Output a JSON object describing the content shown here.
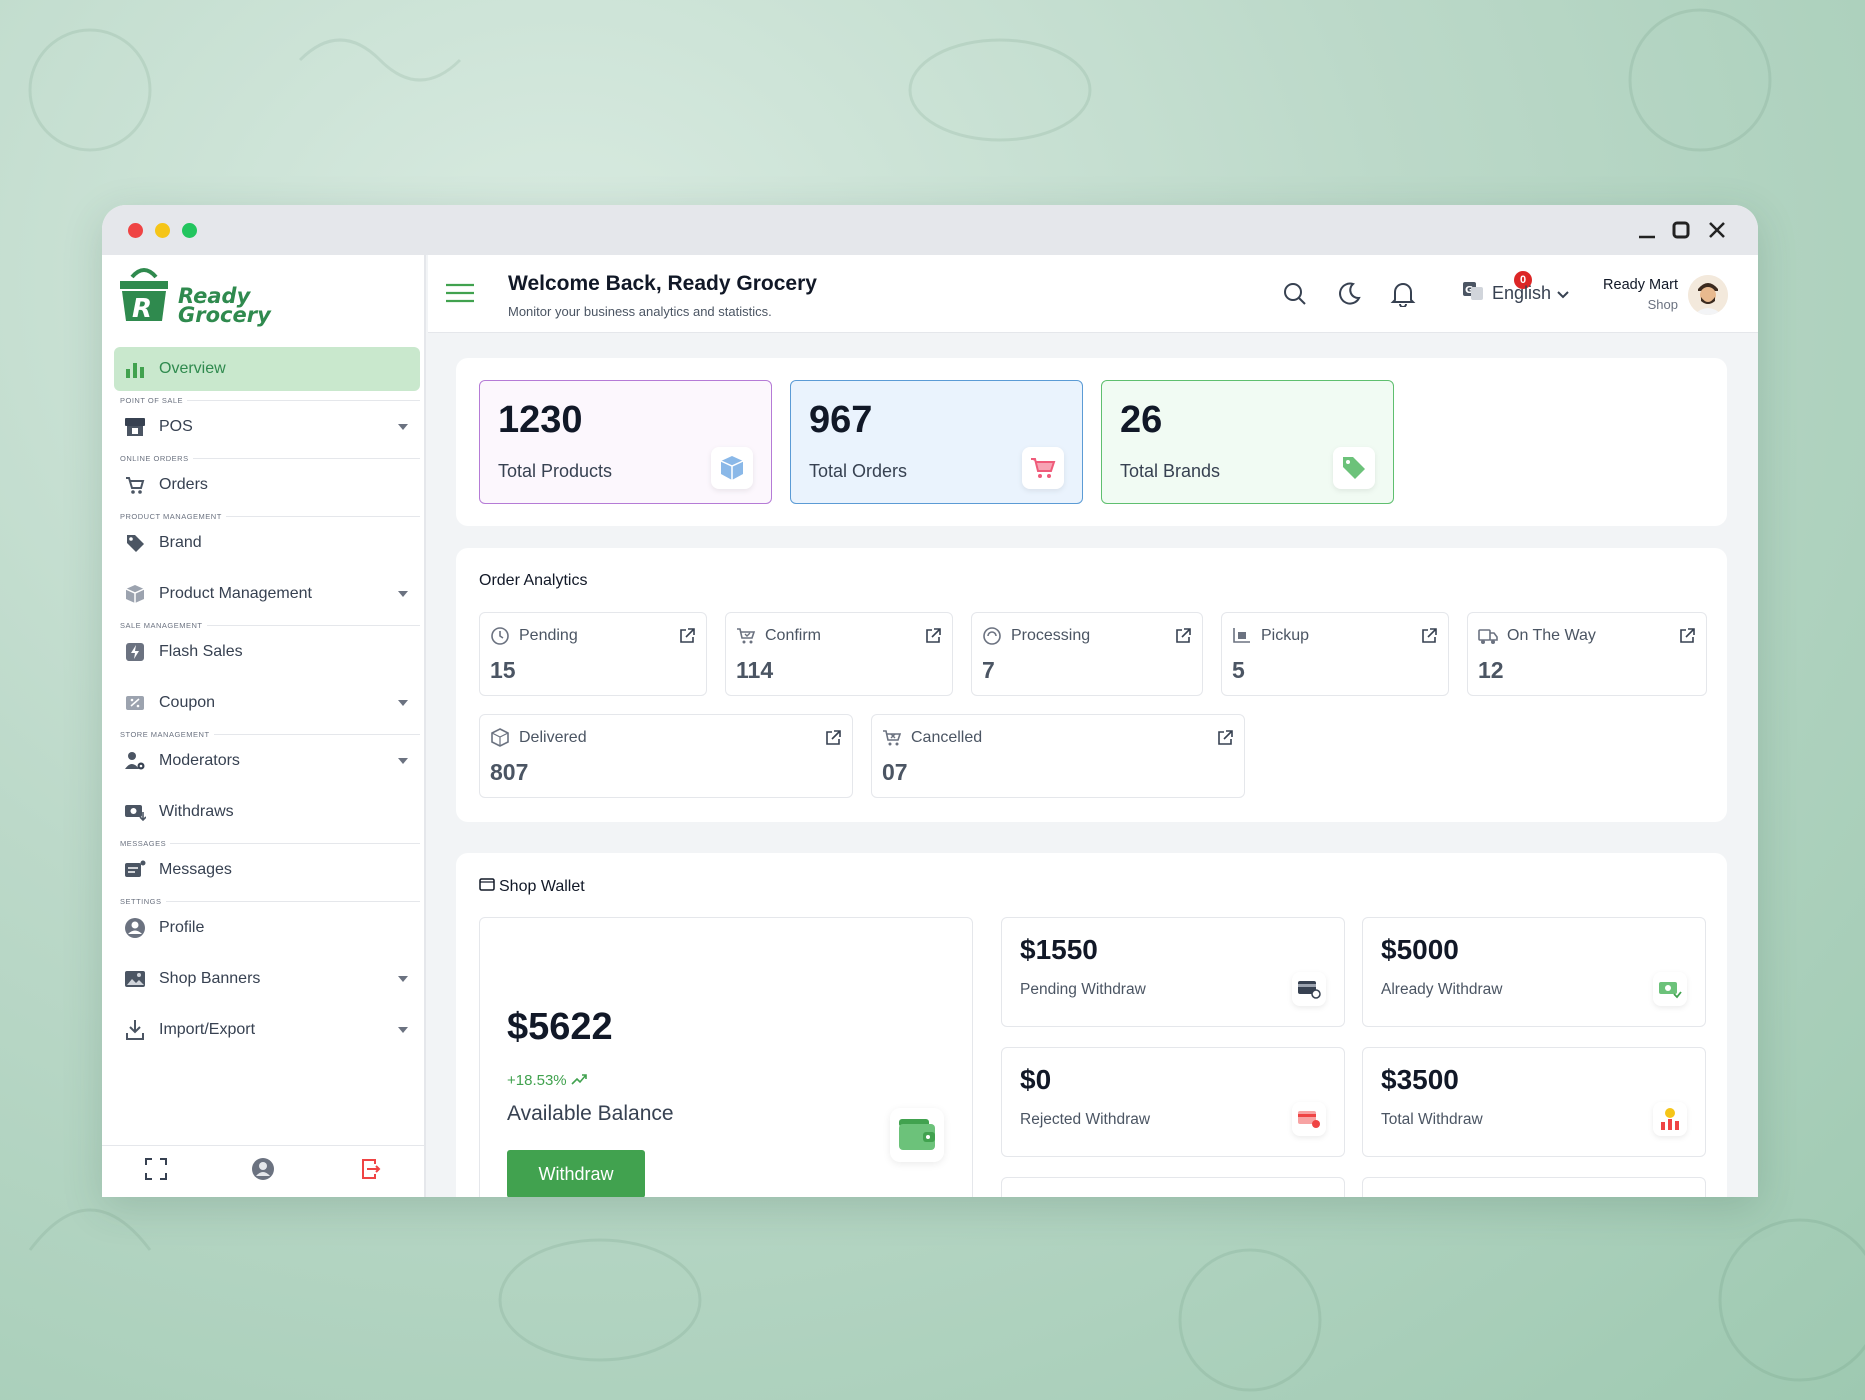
{
  "window": {
    "controls": [
      "minimize-icon",
      "maximize-icon",
      "close-icon"
    ]
  },
  "brand": {
    "line1": "Ready",
    "line2": "Grocery",
    "color": "#2f8a4e"
  },
  "sidebar": {
    "items": [
      {
        "label": "Overview",
        "section": "",
        "icon": "chart-icon",
        "active": true
      },
      {
        "label": "POS",
        "section": "POINT OF SALE",
        "icon": "pos-icon",
        "dropdown": true
      },
      {
        "label": "Orders",
        "section": "ONLINE ORDERS",
        "icon": "cart-icon"
      },
      {
        "label": "Brand",
        "section": "PRODUCT MANAGEMENT",
        "icon": "tag-icon"
      },
      {
        "label": "Product Management",
        "section": "",
        "icon": "box-icon",
        "dropdown": true
      },
      {
        "label": "Flash Sales",
        "section": "SALE MANAGEMENT",
        "icon": "flash-icon"
      },
      {
        "label": "Coupon",
        "section": "",
        "icon": "coupon-icon",
        "dropdown": true
      },
      {
        "label": "Moderators",
        "section": "STORE MANAGEMENT",
        "icon": "user-gear-icon",
        "dropdown": true
      },
      {
        "label": "Withdraws",
        "section": "",
        "icon": "money-icon"
      },
      {
        "label": "Messages",
        "section": "MESSAGES",
        "icon": "message-icon"
      },
      {
        "label": "Profile",
        "section": "SETTINGS",
        "icon": "profile-icon"
      },
      {
        "label": "Shop Banners",
        "section": "",
        "icon": "image-icon",
        "dropdown": true
      },
      {
        "label": "Import/Export",
        "section": "",
        "icon": "download-icon",
        "dropdown": true
      }
    ]
  },
  "header": {
    "title": "Welcome Back, Ready Grocery",
    "subtitle": "Monitor your business analytics and statistics.",
    "notification_count": "0",
    "language": "English",
    "user_name": "Ready Mart",
    "user_role": "Shop"
  },
  "stats": [
    {
      "value": "1230",
      "label": "Total Products",
      "border": "#b57bd6",
      "bg": "#fcf7fd",
      "icon": "cube-icon"
    },
    {
      "value": "967",
      "label": "Total Orders",
      "border": "#5b9bd5",
      "bg": "#eaf3fd",
      "icon": "cart-icon"
    },
    {
      "value": "26",
      "label": "Total Brands",
      "border": "#5fbf6f",
      "bg": "#f1fbf3",
      "icon": "tag-icon"
    }
  ],
  "order_analytics": {
    "title": "Order Analytics",
    "items": [
      {
        "label": "Pending",
        "value": "15",
        "icon": "clock-icon"
      },
      {
        "label": "Confirm",
        "value": "114",
        "icon": "cart-check-icon"
      },
      {
        "label": "Processing",
        "value": "7",
        "icon": "processing-icon"
      },
      {
        "label": "Pickup",
        "value": "5",
        "icon": "pickup-icon"
      },
      {
        "label": "On The Way",
        "value": "12",
        "icon": "truck-icon"
      },
      {
        "label": "Delivered",
        "value": "807",
        "icon": "delivered-icon"
      },
      {
        "label": "Cancelled",
        "value": "07",
        "icon": "cart-cancel-icon"
      }
    ]
  },
  "wallet": {
    "title": "Shop Wallet",
    "balance": "$5622",
    "growth": "+18.53%",
    "balance_label": "Available Balance",
    "withdraw_button": "Withdraw",
    "cards": [
      {
        "value": "$1550",
        "label": "Pending Withdraw",
        "icon": "card-pending-icon"
      },
      {
        "value": "$5000",
        "label": "Already Withdraw",
        "icon": "cash-check-icon"
      },
      {
        "value": "$0",
        "label": "Rejected Withdraw",
        "icon": "card-reject-icon"
      },
      {
        "value": "$3500",
        "label": "Total Withdraw",
        "icon": "coin-chart-icon"
      }
    ]
  },
  "accent": "#41a24f"
}
